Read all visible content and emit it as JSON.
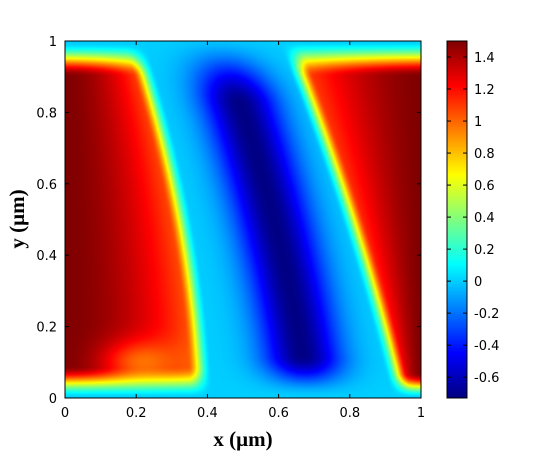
{
  "chart_data": {
    "type": "heatmap",
    "title": "",
    "xlabel": "x (μm)",
    "ylabel": "y (μm)",
    "xlim": [
      0,
      1
    ],
    "ylim": [
      0,
      1
    ],
    "x_ticks": [
      "0",
      "0.2",
      "0.4",
      "0.6",
      "0.8",
      "1"
    ],
    "y_ticks": [
      "0",
      "0.2",
      "0.4",
      "0.6",
      "0.8",
      "1"
    ],
    "colorbar": {
      "range": [
        -0.73,
        1.5
      ],
      "ticks": [
        "-0.6",
        "-0.4",
        "-0.2",
        "0",
        "0.2",
        "0.4",
        "0.6",
        "0.8",
        "1",
        "1.2",
        "1.4"
      ],
      "colormap": "jet"
    },
    "field_description": {
      "left_region": "positive lobe, max ~1.5 near x=0, y=0.4",
      "left_boundary": "x from ~0.19 at y=1 to ~0.38 at y=0",
      "center_region": "negative trough, min ~-0.7 near x=0.5",
      "right_boundary": "x from ~0.63 at y=1 to ~0.95 at y=0",
      "right_region": "positive lobe, max ~1.5 near x=1, y=0.55",
      "background_edges": "near 0 (cyan) along top-left and bottom"
    }
  }
}
